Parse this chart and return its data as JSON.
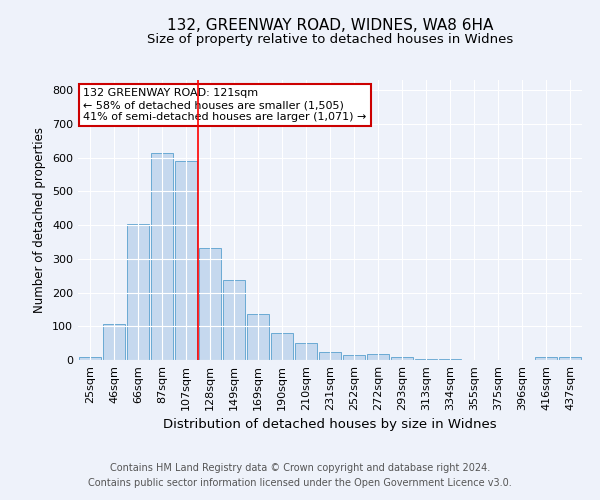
{
  "title": "132, GREENWAY ROAD, WIDNES, WA8 6HA",
  "subtitle": "Size of property relative to detached houses in Widnes",
  "xlabel": "Distribution of detached houses by size in Widnes",
  "ylabel": "Number of detached properties",
  "categories": [
    "25sqm",
    "46sqm",
    "66sqm",
    "87sqm",
    "107sqm",
    "128sqm",
    "149sqm",
    "169sqm",
    "190sqm",
    "210sqm",
    "231sqm",
    "252sqm",
    "272sqm",
    "293sqm",
    "313sqm",
    "334sqm",
    "355sqm",
    "375sqm",
    "396sqm",
    "416sqm",
    "437sqm"
  ],
  "values": [
    8,
    107,
    403,
    614,
    591,
    332,
    237,
    136,
    79,
    51,
    24,
    15,
    18,
    8,
    4,
    2,
    0,
    0,
    0,
    9,
    10
  ],
  "bar_color": "#c5d8ee",
  "bar_edge_color": "#6aaad4",
  "vline_color": "red",
  "vline_x_index": 4.5,
  "annotation_text": "132 GREENWAY ROAD: 121sqm\n← 58% of detached houses are smaller (1,505)\n41% of semi-detached houses are larger (1,071) →",
  "annotation_box_color": "white",
  "annotation_box_edge_color": "#cc0000",
  "ylim": [
    0,
    830
  ],
  "yticks": [
    0,
    100,
    200,
    300,
    400,
    500,
    600,
    700,
    800
  ],
  "footer1": "Contains HM Land Registry data © Crown copyright and database right 2024.",
  "footer2": "Contains public sector information licensed under the Open Government Licence v3.0.",
  "bg_color": "#eef2fa",
  "grid_color": "white",
  "title_fontsize": 11,
  "subtitle_fontsize": 9.5,
  "xlabel_fontsize": 9.5,
  "ylabel_fontsize": 8.5,
  "tick_fontsize": 8,
  "annotation_fontsize": 8,
  "footer_fontsize": 7
}
